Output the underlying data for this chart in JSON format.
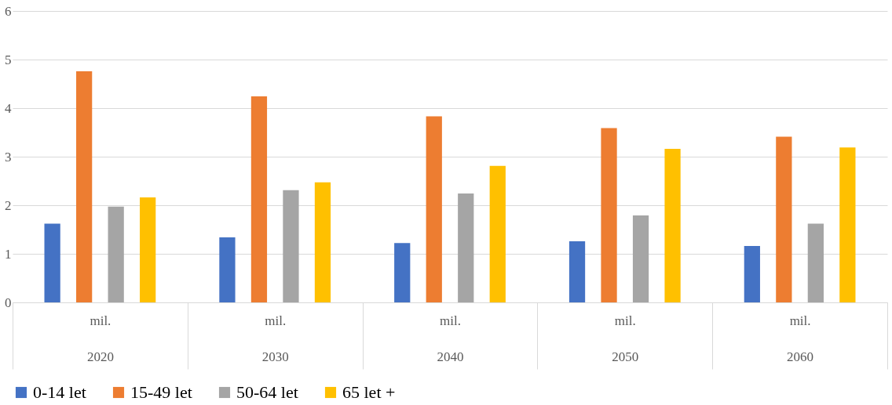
{
  "chart_data": {
    "type": "bar",
    "categories": [
      "mil.\n2020",
      "mil.\n2030",
      "mil.\n2040",
      "mil.\n2050",
      "mil.\n2060"
    ],
    "series": [
      {
        "name": "0-14 let",
        "color": "#4472c4",
        "values": [
          1.62,
          1.34,
          1.22,
          1.26,
          1.16
        ]
      },
      {
        "name": "15-49 let",
        "color": "#ed7d31",
        "values": [
          4.76,
          4.24,
          3.83,
          3.59,
          3.41
        ]
      },
      {
        "name": "50-64 let",
        "color": "#a5a5a5",
        "values": [
          1.97,
          2.31,
          2.24,
          1.79,
          1.62
        ]
      },
      {
        "name": "65 let +",
        "color": "#ffc000",
        "values": [
          2.16,
          2.47,
          2.81,
          3.16,
          3.19
        ]
      }
    ],
    "ylim": [
      0,
      6
    ],
    "yticks": [
      0,
      1,
      2,
      3,
      4,
      5,
      6
    ],
    "grid": "y",
    "legend": "bottom"
  }
}
